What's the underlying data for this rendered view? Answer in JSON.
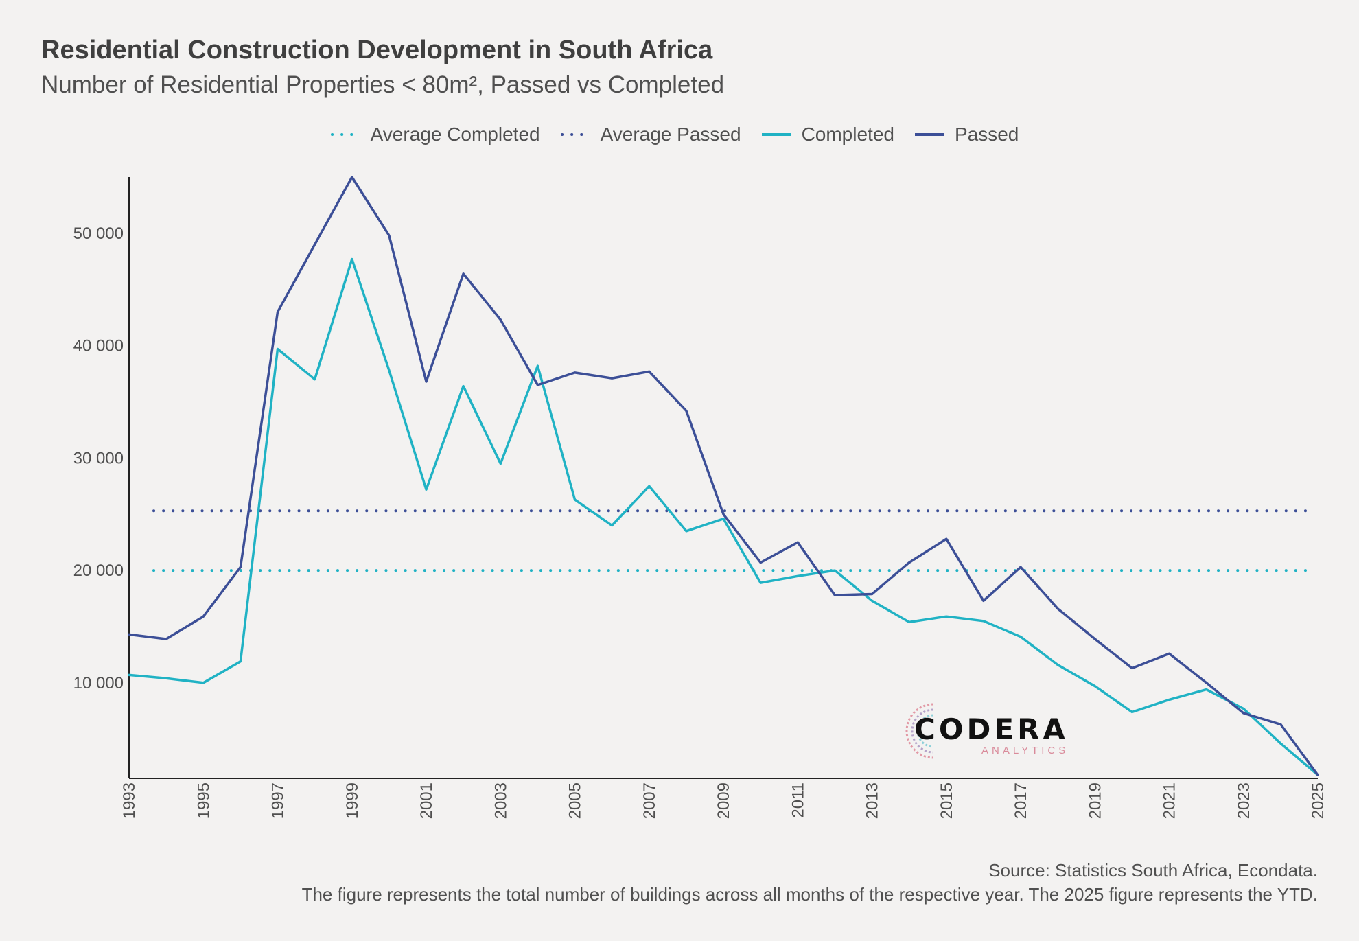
{
  "chart_data": {
    "type": "line",
    "title": "Residential Construction Development in South Africa",
    "subtitle": "Number of Residential Properties < 80m², Passed vs Completed",
    "x": [
      1993,
      1994,
      1995,
      1996,
      1997,
      1998,
      1999,
      2000,
      2001,
      2002,
      2003,
      2004,
      2005,
      2006,
      2007,
      2008,
      2009,
      2010,
      2011,
      2012,
      2013,
      2014,
      2015,
      2016,
      2017,
      2018,
      2019,
      2020,
      2021,
      2022,
      2023,
      2024,
      2025
    ],
    "xlim": [
      1993,
      2025
    ],
    "x_ticks": [
      "1993",
      "1995",
      "1997",
      "1999",
      "2001",
      "2003",
      "2005",
      "2007",
      "2009",
      "2011",
      "2013",
      "2015",
      "2017",
      "2019",
      "2021",
      "2023",
      "2025"
    ],
    "ylim": [
      1500,
      55000
    ],
    "y_ticks": [
      10000,
      20000,
      30000,
      40000,
      50000
    ],
    "y_tick_labels": [
      "10 000",
      "20 000",
      "30 000",
      "40 000",
      "50 000"
    ],
    "grid": false,
    "legend_position": "top",
    "series": [
      {
        "name": "Completed",
        "color": "#20b2c4",
        "style": "solid",
        "values": [
          10700,
          10400,
          10000,
          11900,
          39700,
          37000,
          47700,
          37800,
          27200,
          36400,
          29500,
          38200,
          26300,
          24000,
          27500,
          23500,
          24600,
          18900,
          19500,
          20000,
          17300,
          15400,
          15900,
          15500,
          14100,
          11600,
          9700,
          7400,
          8500,
          9400,
          7700,
          4600,
          1800
        ]
      },
      {
        "name": "Passed",
        "color": "#3c4f97",
        "style": "solid",
        "values": [
          14300,
          13900,
          15900,
          20300,
          43000,
          49000,
          55000,
          49800,
          36800,
          46400,
          42300,
          36500,
          37600,
          37100,
          37700,
          34200,
          25000,
          20700,
          22500,
          17800,
          17900,
          20700,
          22800,
          17300,
          20300,
          16600,
          13900,
          11300,
          12600,
          10000,
          7300,
          6300,
          1800
        ]
      },
      {
        "name": "Average Completed",
        "color": "#20b2c4",
        "style": "dotted",
        "value": 20000
      },
      {
        "name": "Average Passed",
        "color": "#3c4f97",
        "style": "dotted",
        "value": 25300
      }
    ],
    "legend_order": [
      "Average Completed",
      "Average Passed",
      "Completed",
      "Passed"
    ]
  },
  "source_text": "Source: Statistics South Africa, Econdata.",
  "note_text": "The figure represents the total number of buildings across all months of the respective year. The 2025 figure represents the YTD.",
  "logo": {
    "name": "CODERA",
    "sub": "ANALYTICS"
  }
}
